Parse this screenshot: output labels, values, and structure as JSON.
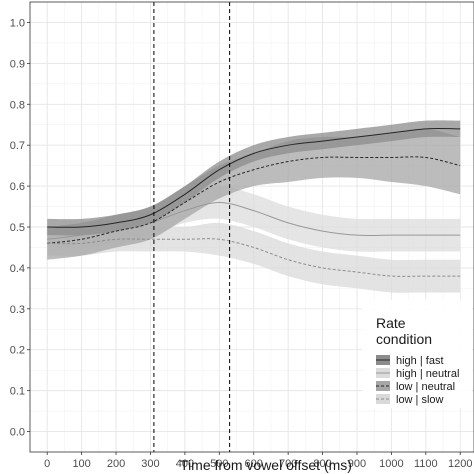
{
  "chart_data": {
    "type": "line",
    "xlabel": "Time from vowel offset (ms)",
    "ylabel": "",
    "xlim": [
      -50,
      1240
    ],
    "ylim": [
      -0.05,
      1.05
    ],
    "xticks": [
      0,
      100,
      200,
      300,
      400,
      500,
      600,
      700,
      800,
      900,
      1000,
      1100,
      1200
    ],
    "xtick_labels": [
      "0",
      "100",
      "200",
      "300",
      "400",
      "500",
      "600",
      "700",
      "800",
      "900",
      "1000",
      "1100",
      "1200"
    ],
    "yticks": [
      0.0,
      0.1,
      0.2,
      0.3,
      0.4,
      0.5,
      0.6,
      0.7,
      0.8,
      0.9,
      1.0
    ],
    "ytick_labels": [
      "0.0",
      "0.1",
      "0.2",
      "0.3",
      "0.4",
      "0.5",
      "0.6",
      "0.7",
      "0.8",
      "0.9",
      "1.0"
    ],
    "grid": true,
    "vlines": [
      310,
      530
    ],
    "legend": {
      "title_lines": [
        "Rate",
        "condition"
      ],
      "placement": "bottom-right",
      "entries": [
        "high | fast",
        "high | neutral",
        "low | neutral",
        "low | slow"
      ]
    },
    "series": [
      {
        "name": "high | fast",
        "line_style": "solid",
        "line_color": "#262626",
        "band_color": "#8c8c8c",
        "x": [
          0,
          100,
          200,
          300,
          400,
          500,
          600,
          700,
          800,
          900,
          1000,
          1100,
          1200
        ],
        "y": [
          0.5,
          0.5,
          0.51,
          0.53,
          0.58,
          0.64,
          0.68,
          0.7,
          0.71,
          0.72,
          0.73,
          0.74,
          0.74
        ],
        "lower": [
          0.48,
          0.48,
          0.49,
          0.51,
          0.56,
          0.62,
          0.66,
          0.68,
          0.69,
          0.7,
          0.71,
          0.72,
          0.72
        ],
        "upper": [
          0.52,
          0.52,
          0.53,
          0.55,
          0.6,
          0.66,
          0.7,
          0.72,
          0.73,
          0.74,
          0.75,
          0.76,
          0.76
        ]
      },
      {
        "name": "high | neutral",
        "line_style": "solid",
        "line_color": "#999999",
        "band_color": "#dcdcdc",
        "x": [
          0,
          100,
          200,
          300,
          400,
          500,
          600,
          700,
          800,
          900,
          1000,
          1100,
          1200
        ],
        "y": [
          0.47,
          0.48,
          0.49,
          0.51,
          0.54,
          0.56,
          0.54,
          0.51,
          0.49,
          0.48,
          0.48,
          0.48,
          0.48
        ],
        "lower": [
          0.44,
          0.45,
          0.46,
          0.48,
          0.51,
          0.52,
          0.5,
          0.47,
          0.45,
          0.44,
          0.44,
          0.44,
          0.44
        ],
        "upper": [
          0.5,
          0.51,
          0.52,
          0.54,
          0.57,
          0.6,
          0.58,
          0.55,
          0.53,
          0.52,
          0.52,
          0.52,
          0.52
        ]
      },
      {
        "name": "low | neutral",
        "line_style": "dashed",
        "line_color": "#262626",
        "band_color": "#a6a6a6",
        "x": [
          0,
          100,
          200,
          300,
          400,
          500,
          600,
          700,
          800,
          900,
          1000,
          1100,
          1200
        ],
        "y": [
          0.46,
          0.47,
          0.49,
          0.51,
          0.56,
          0.61,
          0.64,
          0.66,
          0.67,
          0.67,
          0.67,
          0.67,
          0.65
        ],
        "lower": [
          0.42,
          0.43,
          0.45,
          0.47,
          0.52,
          0.57,
          0.6,
          0.61,
          0.62,
          0.62,
          0.61,
          0.6,
          0.58
        ],
        "upper": [
          0.5,
          0.51,
          0.53,
          0.55,
          0.6,
          0.65,
          0.68,
          0.71,
          0.72,
          0.72,
          0.73,
          0.74,
          0.72
        ]
      },
      {
        "name": "low | slow",
        "line_style": "dashed",
        "line_color": "#8c8c8c",
        "band_color": "#d9d9d9",
        "x": [
          0,
          100,
          200,
          300,
          400,
          500,
          600,
          700,
          800,
          900,
          1000,
          1100,
          1200
        ],
        "y": [
          0.46,
          0.46,
          0.47,
          0.47,
          0.47,
          0.47,
          0.45,
          0.42,
          0.4,
          0.39,
          0.38,
          0.38,
          0.38
        ],
        "lower": [
          0.43,
          0.43,
          0.44,
          0.44,
          0.44,
          0.43,
          0.41,
          0.38,
          0.36,
          0.35,
          0.34,
          0.34,
          0.34
        ],
        "upper": [
          0.49,
          0.49,
          0.5,
          0.5,
          0.5,
          0.51,
          0.49,
          0.46,
          0.44,
          0.43,
          0.42,
          0.42,
          0.42
        ]
      }
    ]
  }
}
